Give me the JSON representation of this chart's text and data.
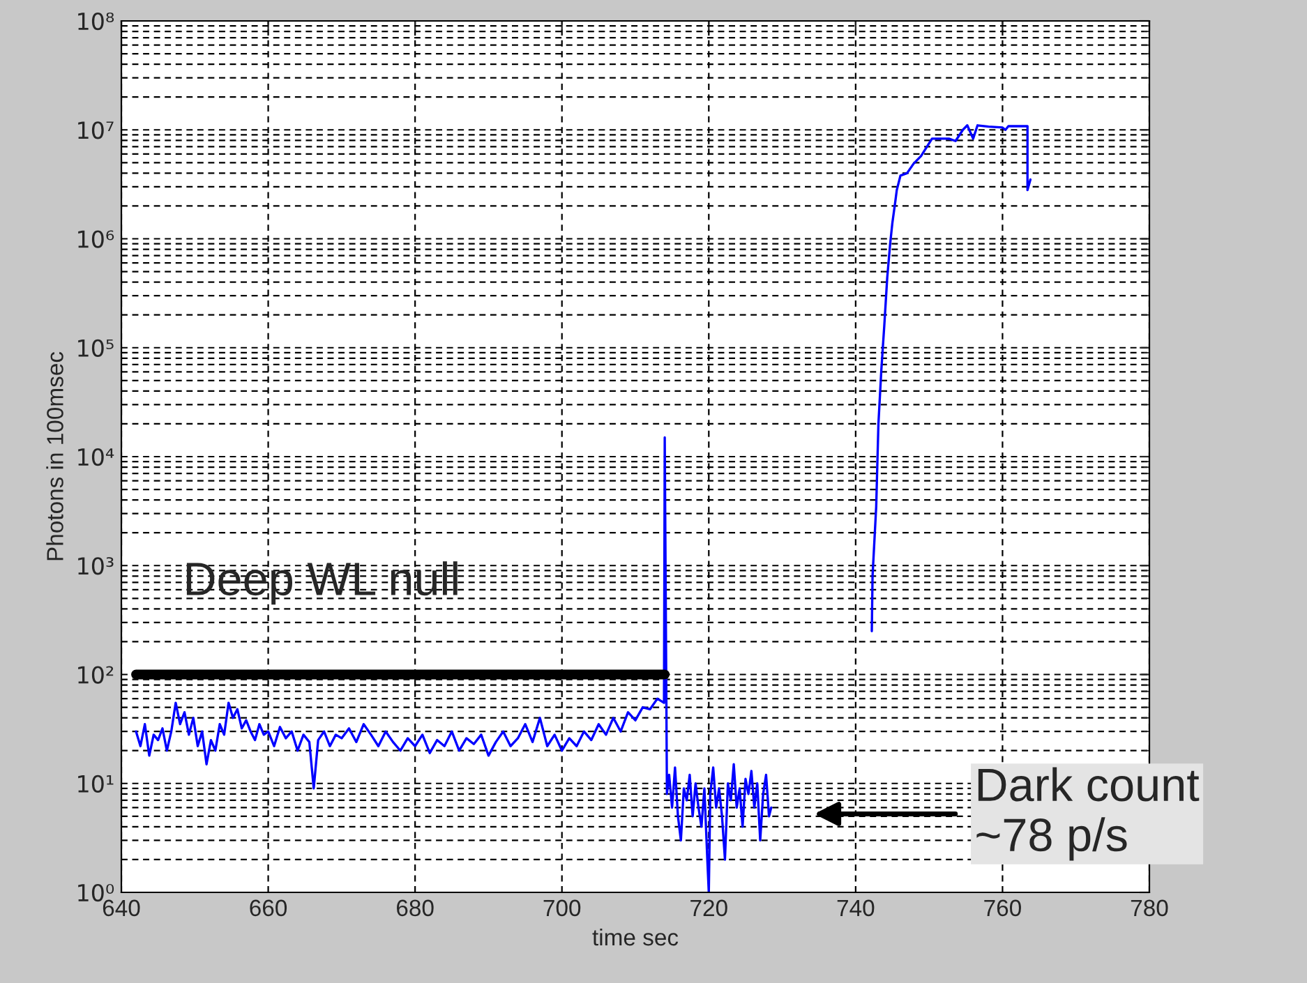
{
  "chart_data": {
    "type": "line",
    "xlabel": "time sec",
    "ylabel": "Photons in 100msec",
    "annotations": [
      "Deep WL null",
      "Dark count\n~78 p/s"
    ],
    "log": "y",
    "grid": true,
    "legend": false,
    "line_style": "solid",
    "marker": "none",
    "xlim": [
      640,
      780
    ],
    "xticks": [
      640,
      660,
      680,
      700,
      720,
      740,
      760,
      780
    ],
    "ylim": [
      1,
      100000000
    ],
    "yticks": [
      {
        "value": 1,
        "label": "10⁰"
      },
      {
        "value": 10,
        "label": "10¹"
      },
      {
        "value": 100,
        "label": "10²"
      },
      {
        "value": 1000,
        "label": "10³"
      },
      {
        "value": 10000,
        "label": "10⁴"
      },
      {
        "value": 100000,
        "label": "10⁵"
      },
      {
        "value": 1000000,
        "label": "10⁶"
      },
      {
        "value": 10000000,
        "label": "10⁷"
      },
      {
        "value": 100000000,
        "label": "10⁸"
      }
    ],
    "series": [
      {
        "color": "#0000ff",
        "x": [
          642.0,
          642.6,
          643.2,
          643.8,
          644.4,
          645.0,
          645.6,
          646.2,
          646.8,
          647.4,
          648.0,
          648.6,
          649.2,
          649.8,
          650.4,
          651.0,
          651.6,
          652.2,
          652.8,
          653.4,
          654.0,
          654.6,
          655.2,
          655.8,
          656.4,
          657.0,
          657.6,
          658.2,
          658.8,
          659.4,
          660.0,
          660.8,
          661.6,
          662.4,
          663.2,
          664.0,
          664.8,
          665.6,
          666.2,
          666.8,
          667.6,
          668.4,
          669.2,
          670.0,
          671.0,
          672.0,
          673.0,
          674.0,
          675.0,
          676.0,
          677.0,
          678.0,
          679.0,
          680.0,
          681.0,
          682.0,
          683.0,
          684.0,
          685.0,
          686.0,
          687.0,
          688.0,
          689.0,
          690.0,
          691.0,
          692.0,
          693.0,
          694.0,
          695.0,
          696.0,
          697.0,
          698.0,
          699.0,
          700.0,
          701.0,
          702.0,
          703.0,
          704.0,
          705.0,
          706.0,
          707.0,
          708.0,
          709.0,
          710.0,
          711.0,
          712.0,
          713.0,
          713.9,
          714.0,
          714.3,
          714.6,
          715.0,
          715.4,
          715.8,
          716.2,
          716.6,
          717.0,
          717.4,
          717.8,
          718.2,
          718.6,
          719.0,
          719.4,
          719.8,
          720.0,
          720.2,
          720.6,
          721.0,
          721.4,
          721.8,
          722.2,
          722.6,
          723.0,
          723.4,
          723.8,
          724.2,
          724.6,
          725.0,
          725.4,
          725.8,
          726.2,
          726.6,
          727.0,
          727.4,
          727.8,
          728.2,
          728.5,
          735.0,
          742.2,
          742.3,
          742.8,
          743.1,
          743.5,
          743.9,
          744.3,
          744.7,
          745.0,
          745.4,
          745.6,
          746.1,
          747.0,
          747.9,
          748.9,
          750.4,
          752.7,
          753.6,
          754.6,
          755.2,
          756.0,
          756.6,
          758.1,
          760.0,
          760.4,
          760.8,
          763.4,
          763.4,
          763.8
        ],
        "values": [
          30,
          22,
          35,
          18,
          28,
          25,
          32,
          20,
          30,
          55,
          35,
          45,
          28,
          40,
          22,
          30,
          15,
          25,
          20,
          35,
          28,
          55,
          40,
          48,
          32,
          38,
          30,
          25,
          35,
          28,
          30,
          22,
          33,
          26,
          30,
          20,
          28,
          24,
          9,
          25,
          30,
          22,
          28,
          26,
          32,
          24,
          35,
          28,
          22,
          30,
          24,
          20,
          26,
          22,
          28,
          19,
          25,
          22,
          30,
          20,
          26,
          23,
          28,
          18,
          24,
          30,
          22,
          26,
          35,
          24,
          40,
          22,
          28,
          20,
          26,
          22,
          30,
          25,
          35,
          28,
          40,
          30,
          45,
          38,
          50,
          48,
          60,
          55,
          15000,
          8,
          12,
          6,
          14,
          5,
          3,
          9,
          7,
          12,
          5,
          10,
          6,
          4,
          9,
          2,
          1,
          8,
          14,
          6,
          9,
          5,
          2,
          10,
          7,
          15,
          6,
          9,
          4,
          11,
          8,
          13,
          6,
          10,
          3,
          8,
          12,
          5,
          6,
          null,
          250,
          800,
          3500,
          20000,
          63000,
          160000,
          440000,
          900000,
          1400000,
          2200000,
          2800000,
          3800000,
          4000000,
          4900000,
          5750000,
          8300000,
          8300000,
          7900000,
          10000000,
          11000000,
          8300000,
          11000000,
          10700000,
          10500000,
          10000000,
          10800000,
          10800000,
          2800000,
          3500000
        ]
      },
      {
        "color": "#000000",
        "x": [
          642,
          714
        ],
        "values": [
          100,
          100
        ]
      }
    ]
  }
}
